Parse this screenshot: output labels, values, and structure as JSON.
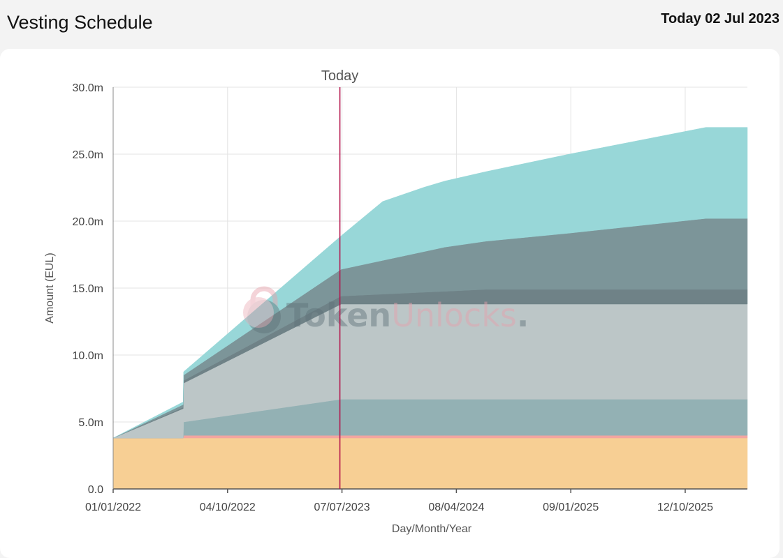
{
  "header": {
    "title": "Vesting Schedule",
    "today_label": "Today 02 Jul 2023"
  },
  "watermark": {
    "part1": "Token",
    "part2": "Unlocks",
    "dot": "."
  },
  "chart_data": {
    "type": "area",
    "stacked": true,
    "xlabel": "Day/Month/Year",
    "ylabel": "Amount (EUL)",
    "x_ticks": [
      "01/01/2022",
      "04/10/2022",
      "07/07/2023",
      "08/04/2024",
      "09/01/2025",
      "12/10/2025"
    ],
    "x_tick_days": [
      0,
      276,
      552,
      828,
      1104,
      1380
    ],
    "x_range_days": [
      0,
      1530
    ],
    "ylim": [
      0,
      30
    ],
    "y_ticks": [
      "0.0",
      "5.0m",
      "10.0m",
      "15.0m",
      "20.0m",
      "25.0m",
      "30.0m"
    ],
    "y_tick_values": [
      0,
      5,
      10,
      15,
      20,
      25,
      30
    ],
    "grid": true,
    "today_marker": {
      "label": "Today",
      "day": 547
    },
    "series": [
      {
        "color": "#f7cf94",
        "points": [
          [
            0,
            3.8
          ],
          [
            1530,
            3.8
          ]
        ]
      },
      {
        "color": "#f2a5a0",
        "points": [
          [
            0,
            0
          ],
          [
            169,
            0
          ],
          [
            170,
            0.2
          ],
          [
            1530,
            0.2
          ]
        ]
      },
      {
        "color": "#93b1b4",
        "points": [
          [
            0,
            0
          ],
          [
            169,
            0
          ],
          [
            170,
            1.0
          ],
          [
            550,
            2.7
          ],
          [
            1530,
            2.7
          ]
        ]
      },
      {
        "color": "#bcc6c7",
        "points": [
          [
            0,
            0
          ],
          [
            169,
            2.2
          ],
          [
            170,
            2.9
          ],
          [
            550,
            7.1
          ],
          [
            1530,
            7.1
          ]
        ]
      },
      {
        "color": "#6f8287",
        "points": [
          [
            0,
            0
          ],
          [
            169,
            0.1
          ],
          [
            170,
            0.2
          ],
          [
            550,
            0.6
          ],
          [
            900,
            1.1
          ],
          [
            1530,
            1.1
          ]
        ]
      },
      {
        "color": "#7c9599",
        "points": [
          [
            0,
            0
          ],
          [
            169,
            0.2
          ],
          [
            170,
            0.4
          ],
          [
            550,
            2.0
          ],
          [
            800,
            3.3
          ],
          [
            1100,
            4.2
          ],
          [
            1430,
            5.3
          ],
          [
            1530,
            5.3
          ]
        ]
      },
      {
        "color": "#98d7d8",
        "points": [
          [
            0,
            0
          ],
          [
            169,
            0.2
          ],
          [
            170,
            0.25
          ],
          [
            550,
            2.5
          ],
          [
            650,
            4.4
          ],
          [
            750,
            4.8
          ],
          [
            900,
            5.2
          ],
          [
            1100,
            5.9
          ],
          [
            1430,
            6.8
          ],
          [
            1530,
            6.8
          ]
        ]
      }
    ]
  }
}
